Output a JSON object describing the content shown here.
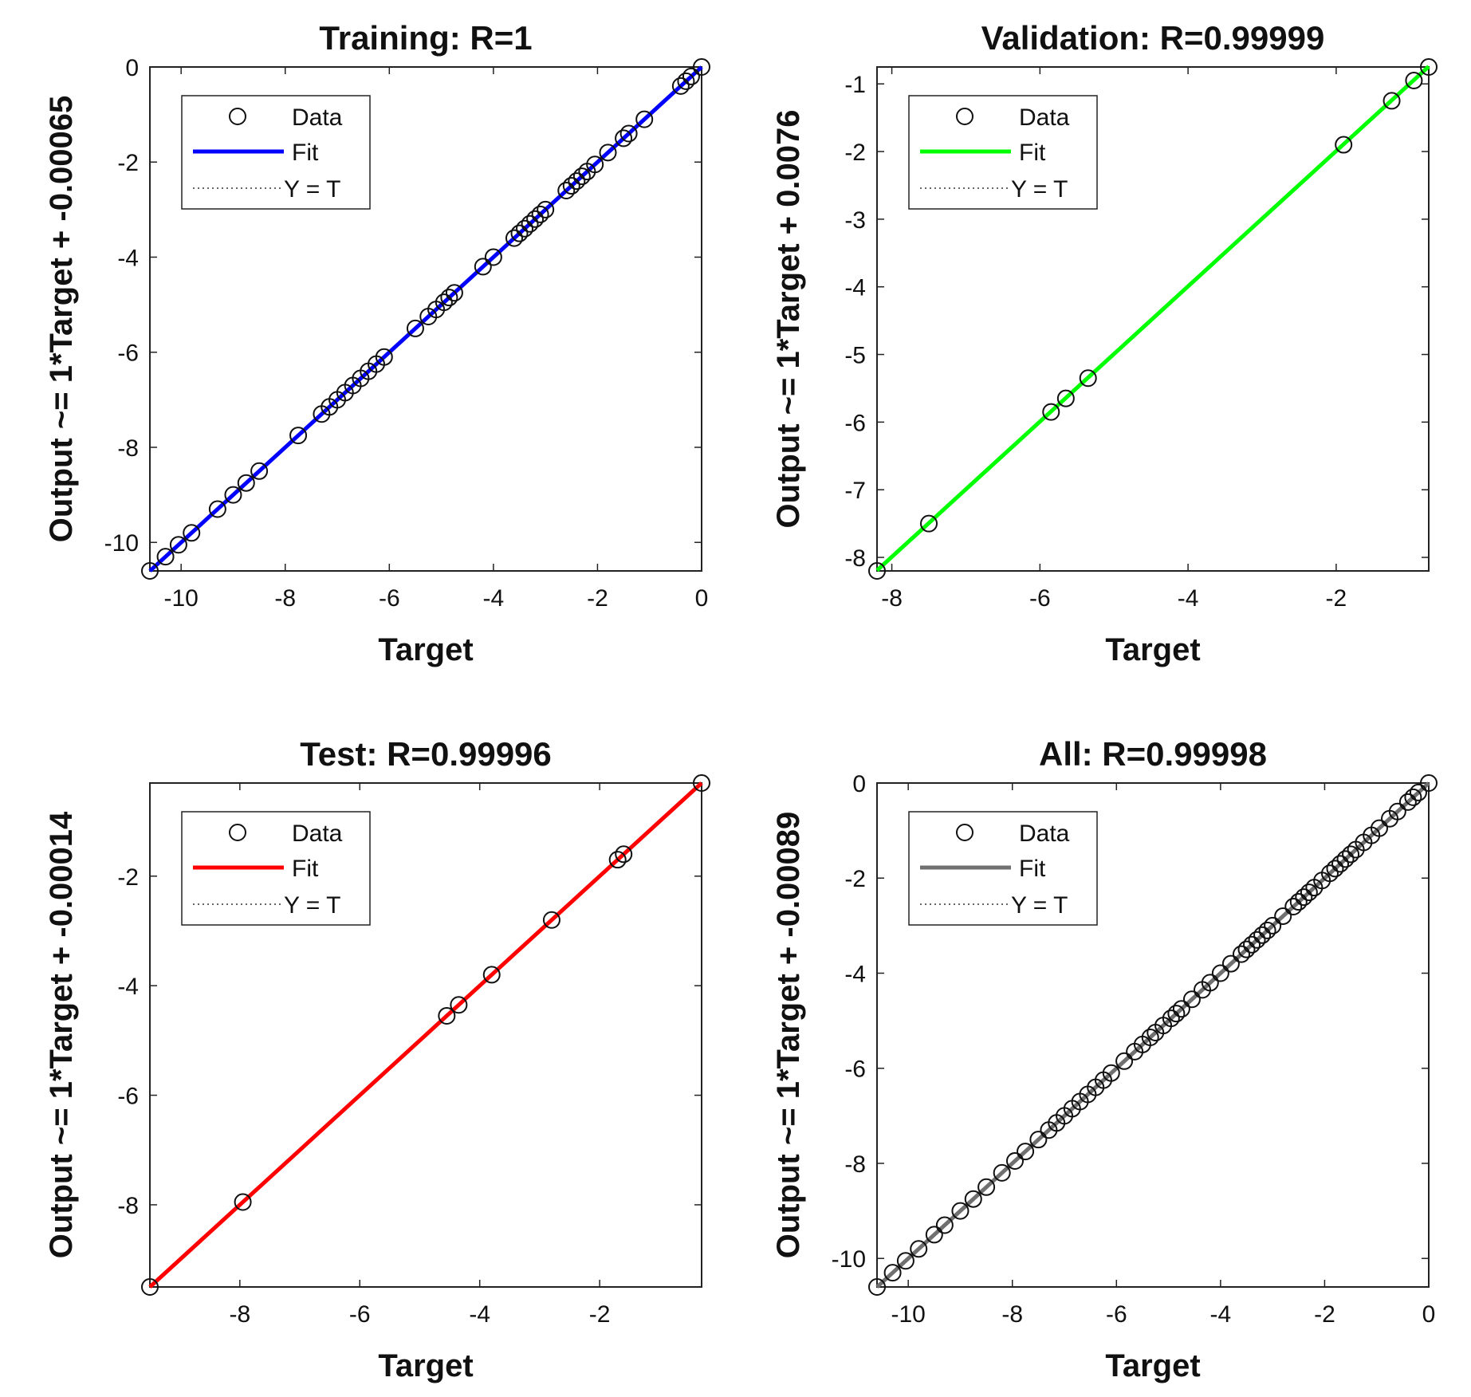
{
  "chart_data": [
    {
      "type": "scatter",
      "title": "Training: R=1",
      "xlabel": "Target",
      "ylabel": "Output ~= 1*Target + -0.00065",
      "xlim": [
        -10.6,
        0
      ],
      "ylim": [
        -10.6,
        0
      ],
      "xticks": [
        -10,
        -8,
        -6,
        -4,
        -2,
        0
      ],
      "yticks": [
        -10,
        -8,
        -6,
        -4,
        -2,
        0
      ],
      "fit": {
        "slope": 1,
        "intercept": -0.00065,
        "color": "#0000ff"
      },
      "legend": {
        "data": "Data",
        "fit": "Fit",
        "identity": "Y = T"
      },
      "grid": false,
      "points": [
        -10.6,
        -10.3,
        -10.05,
        -9.8,
        -9.3,
        -9.0,
        -8.75,
        -8.5,
        -7.75,
        -7.3,
        -7.15,
        -7.0,
        -6.85,
        -6.7,
        -6.55,
        -6.4,
        -6.25,
        -6.1,
        -5.5,
        -5.25,
        -5.1,
        -4.95,
        -4.85,
        -4.75,
        -4.2,
        -4.0,
        -3.6,
        -3.5,
        -3.4,
        -3.3,
        -3.2,
        -3.1,
        -3.0,
        -2.6,
        -2.5,
        -2.4,
        -2.3,
        -2.2,
        -2.05,
        -1.8,
        -1.5,
        -1.4,
        -1.1,
        -0.4,
        -0.3,
        -0.2,
        0.0
      ]
    },
    {
      "type": "scatter",
      "title": "Validation: R=0.99999",
      "xlabel": "Target",
      "ylabel": "Output ~= 1*Target + 0.0076",
      "xlim": [
        -8.2,
        -0.75
      ],
      "ylim": [
        -8.2,
        -0.75
      ],
      "xticks": [
        -8,
        -6,
        -4,
        -2
      ],
      "yticks": [
        -8,
        -7,
        -6,
        -5,
        -4,
        -3,
        -2,
        -1
      ],
      "fit": {
        "slope": 1,
        "intercept": 0.0076,
        "color": "#00ff00"
      },
      "legend": {
        "data": "Data",
        "fit": "Fit",
        "identity": "Y = T"
      },
      "grid": false,
      "points": [
        -8.2,
        -7.5,
        -5.85,
        -5.65,
        -5.35,
        -1.9,
        -1.25,
        -0.95,
        -0.75
      ]
    },
    {
      "type": "scatter",
      "title": "Test: R=0.99996",
      "xlabel": "Target",
      "ylabel": "Output ~= 1*Target + -0.00014",
      "xlim": [
        -9.5,
        -0.3
      ],
      "ylim": [
        -9.5,
        -0.3
      ],
      "xticks": [
        -8,
        -6,
        -4,
        -2
      ],
      "yticks": [
        -8,
        -6,
        -4,
        -2
      ],
      "fit": {
        "slope": 1,
        "intercept": -0.00014,
        "color": "#ff0000"
      },
      "legend": {
        "data": "Data",
        "fit": "Fit",
        "identity": "Y = T"
      },
      "grid": false,
      "points": [
        -9.5,
        -7.95,
        -4.55,
        -4.35,
        -3.8,
        -2.8,
        -1.7,
        -1.6,
        -0.3
      ]
    },
    {
      "type": "scatter",
      "title": "All: R=0.99998",
      "xlabel": "Target",
      "ylabel": "Output ~= 1*Target + -0.00089",
      "xlim": [
        -10.6,
        0
      ],
      "ylim": [
        -10.6,
        0
      ],
      "xticks": [
        -10,
        -8,
        -6,
        -4,
        -2,
        0
      ],
      "yticks": [
        -10,
        -8,
        -6,
        -4,
        -2,
        0
      ],
      "fit": {
        "slope": 1,
        "intercept": -0.00089,
        "color": "#707070"
      },
      "legend": {
        "data": "Data",
        "fit": "Fit",
        "identity": "Y = T"
      },
      "grid": false,
      "points": [
        -10.6,
        -10.3,
        -10.05,
        -9.8,
        -9.5,
        -9.3,
        -9.0,
        -8.75,
        -8.5,
        -8.2,
        -7.95,
        -7.75,
        -7.5,
        -7.3,
        -7.15,
        -7.0,
        -6.85,
        -6.7,
        -6.55,
        -6.4,
        -6.25,
        -6.1,
        -5.85,
        -5.65,
        -5.5,
        -5.35,
        -5.25,
        -5.1,
        -4.95,
        -4.85,
        -4.75,
        -4.55,
        -4.35,
        -4.2,
        -4.0,
        -3.8,
        -3.6,
        -3.5,
        -3.4,
        -3.3,
        -3.2,
        -3.1,
        -3.0,
        -2.8,
        -2.6,
        -2.5,
        -2.4,
        -2.3,
        -2.2,
        -2.05,
        -1.9,
        -1.8,
        -1.7,
        -1.6,
        -1.5,
        -1.4,
        -1.25,
        -1.1,
        -0.95,
        -0.75,
        -0.6,
        -0.4,
        -0.3,
        -0.2,
        0.0
      ]
    }
  ]
}
